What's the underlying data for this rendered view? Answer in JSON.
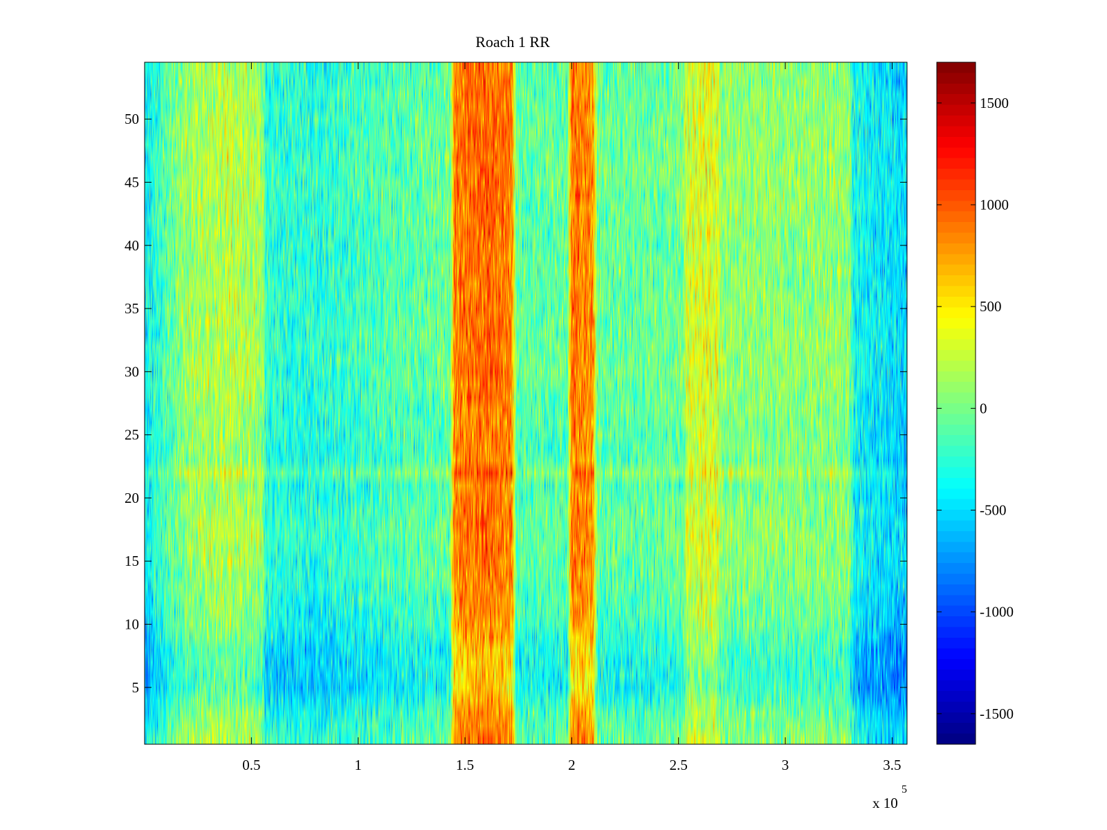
{
  "chart_data": {
    "type": "heatmap",
    "title": "Roach 1 RR",
    "xlabel": "",
    "ylabel": "",
    "xlim": [
      0,
      357000
    ],
    "ylim": [
      0.5,
      54.5
    ],
    "x_ticks": [
      50000,
      100000,
      150000,
      200000,
      250000,
      300000,
      350000
    ],
    "x_tick_labels": [
      "0.5",
      "1",
      "1.5",
      "2",
      "2.5",
      "3",
      "3.5"
    ],
    "x_exponent_base": "x 10",
    "x_exponent_power": "5",
    "y_ticks": [
      5,
      10,
      15,
      20,
      25,
      30,
      35,
      40,
      45,
      50
    ],
    "y_tick_labels": [
      "5",
      "10",
      "15",
      "20",
      "25",
      "30",
      "35",
      "40",
      "45",
      "50"
    ],
    "rows": 54,
    "colormap": "jet",
    "clim": [
      -1650,
      1700
    ],
    "colorbar": {
      "ticks": [
        -1500,
        -1000,
        -500,
        0,
        500,
        1000,
        1500
      ],
      "tick_labels": [
        "-1500",
        "-1000",
        "-500",
        "0",
        "500",
        "1000",
        "1500"
      ]
    },
    "column_profile": [
      {
        "x": 0,
        "value": -450
      },
      {
        "x": 5000,
        "value": -250
      },
      {
        "x": 20000,
        "value": 120
      },
      {
        "x": 40000,
        "value": 220
      },
      {
        "x": 55000,
        "value": 120
      },
      {
        "x": 57000,
        "value": -250
      },
      {
        "x": 80000,
        "value": -280
      },
      {
        "x": 100000,
        "value": -200
      },
      {
        "x": 120000,
        "value": -120
      },
      {
        "x": 143000,
        "value": -60
      },
      {
        "x": 145000,
        "value": 850
      },
      {
        "x": 160000,
        "value": 950
      },
      {
        "x": 172000,
        "value": 850
      },
      {
        "x": 174000,
        "value": -100
      },
      {
        "x": 198000,
        "value": -80
      },
      {
        "x": 200000,
        "value": 900
      },
      {
        "x": 210000,
        "value": 800
      },
      {
        "x": 212000,
        "value": -60
      },
      {
        "x": 230000,
        "value": -80
      },
      {
        "x": 252000,
        "value": -20
      },
      {
        "x": 254000,
        "value": 300
      },
      {
        "x": 268000,
        "value": 350
      },
      {
        "x": 270000,
        "value": 80
      },
      {
        "x": 300000,
        "value": 60
      },
      {
        "x": 330000,
        "value": 80
      },
      {
        "x": 332000,
        "value": -350
      },
      {
        "x": 357000,
        "value": -520
      }
    ],
    "row_profile": [
      {
        "y": 1,
        "value": 0
      },
      {
        "y": 3,
        "value": -100
      },
      {
        "y": 5,
        "value": -300
      },
      {
        "y": 8,
        "value": -250
      },
      {
        "y": 10,
        "value": -120
      },
      {
        "y": 14,
        "value": -20
      },
      {
        "y": 18,
        "value": 30
      },
      {
        "y": 20,
        "value": -40
      },
      {
        "y": 21,
        "value": -60
      },
      {
        "y": 22,
        "value": 120
      },
      {
        "y": 23,
        "value": -60
      },
      {
        "y": 26,
        "value": -40
      },
      {
        "y": 30,
        "value": 30
      },
      {
        "y": 35,
        "value": 10
      },
      {
        "y": 40,
        "value": -10
      },
      {
        "y": 45,
        "value": 40
      },
      {
        "y": 50,
        "value": 20
      },
      {
        "y": 54,
        "value": -20
      }
    ]
  }
}
